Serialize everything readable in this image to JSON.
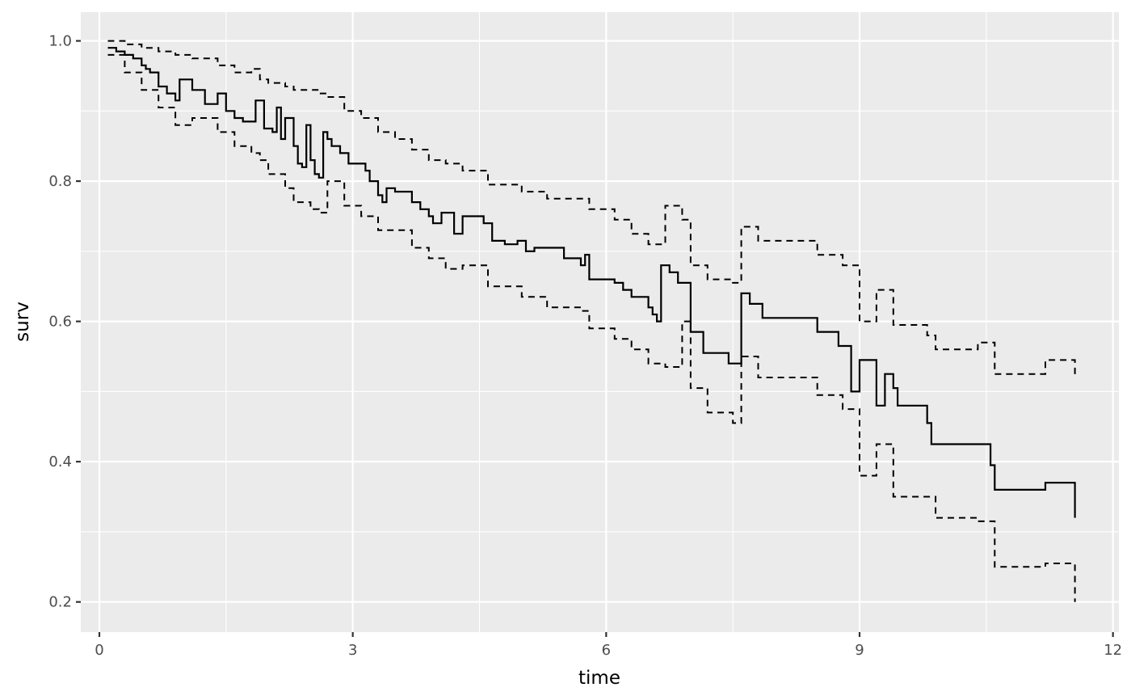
{
  "chart_data": {
    "type": "line",
    "title": "",
    "xlabel": "time",
    "ylabel": "surv",
    "xlim": [
      -0.22,
      12.07
    ],
    "ylim": [
      0.157,
      1.041
    ],
    "x_ticks": [
      0,
      3,
      6,
      9,
      12
    ],
    "x_tick_labels": [
      "0",
      "3",
      "6",
      "9",
      "12"
    ],
    "y_ticks": [
      0.2,
      0.4,
      0.6,
      0.8,
      1.0
    ],
    "y_tick_labels": [
      "0.2",
      "0.4",
      "0.6",
      "0.8",
      "1.0"
    ],
    "grid": true,
    "legend": "none",
    "series": [
      {
        "style": "solid",
        "step": true,
        "x": [
          0.1,
          0.2,
          0.3,
          0.4,
          0.5,
          0.55,
          0.6,
          0.7,
          0.8,
          0.9,
          0.95,
          1.1,
          1.25,
          1.4,
          1.5,
          1.6,
          1.7,
          1.85,
          1.95,
          2.05,
          2.1,
          2.15,
          2.2,
          2.3,
          2.35,
          2.4,
          2.45,
          2.5,
          2.55,
          2.6,
          2.65,
          2.7,
          2.75,
          2.85,
          2.95,
          3.15,
          3.2,
          3.3,
          3.35,
          3.4,
          3.5,
          3.7,
          3.8,
          3.9,
          3.95,
          4.05,
          4.2,
          4.3,
          4.55,
          4.65,
          4.8,
          4.95,
          5.05,
          5.15,
          5.5,
          5.7,
          5.75,
          5.8,
          6.1,
          6.2,
          6.3,
          6.5,
          6.55,
          6.6,
          6.65,
          6.75,
          6.85,
          7.0,
          7.15,
          7.45,
          7.6,
          7.7,
          7.85,
          8.5,
          8.75,
          8.9,
          9.0,
          9.2,
          9.3,
          9.4,
          9.45,
          9.8,
          9.85,
          10.3,
          10.55,
          10.6,
          11.2,
          11.55
        ],
        "y": [
          0.99,
          0.985,
          0.98,
          0.975,
          0.965,
          0.96,
          0.955,
          0.935,
          0.925,
          0.915,
          0.945,
          0.93,
          0.91,
          0.925,
          0.9,
          0.89,
          0.885,
          0.915,
          0.875,
          0.87,
          0.905,
          0.86,
          0.89,
          0.85,
          0.825,
          0.82,
          0.88,
          0.83,
          0.81,
          0.805,
          0.87,
          0.86,
          0.85,
          0.84,
          0.825,
          0.815,
          0.8,
          0.78,
          0.77,
          0.79,
          0.785,
          0.77,
          0.76,
          0.75,
          0.74,
          0.755,
          0.725,
          0.75,
          0.74,
          0.715,
          0.71,
          0.715,
          0.7,
          0.705,
          0.69,
          0.68,
          0.695,
          0.66,
          0.655,
          0.645,
          0.635,
          0.62,
          0.61,
          0.6,
          0.68,
          0.67,
          0.655,
          0.585,
          0.555,
          0.54,
          0.64,
          0.625,
          0.605,
          0.585,
          0.565,
          0.5,
          0.545,
          0.48,
          0.525,
          0.505,
          0.48,
          0.455,
          0.425,
          0.425,
          0.395,
          0.36,
          0.37,
          0.32
        ]
      },
      {
        "style": "dashed",
        "step": true,
        "x": [
          0.1,
          0.3,
          0.5,
          0.7,
          0.9,
          1.1,
          1.4,
          1.6,
          1.8,
          1.9,
          2.0,
          2.2,
          2.3,
          2.5,
          2.6,
          2.7,
          2.9,
          3.1,
          3.3,
          3.5,
          3.7,
          3.9,
          4.1,
          4.3,
          4.6,
          5.0,
          5.3,
          5.7,
          5.8,
          6.1,
          6.3,
          6.5,
          6.7,
          6.9,
          7.0,
          7.2,
          7.5,
          7.6,
          7.8,
          8.5,
          8.8,
          9.0,
          9.2,
          9.4,
          9.8,
          9.9,
          10.4,
          10.6,
          11.2,
          11.55
        ],
        "y": [
          1.0,
          0.995,
          0.99,
          0.985,
          0.98,
          0.975,
          0.965,
          0.955,
          0.96,
          0.945,
          0.94,
          0.935,
          0.93,
          0.93,
          0.925,
          0.92,
          0.9,
          0.89,
          0.87,
          0.86,
          0.845,
          0.83,
          0.825,
          0.815,
          0.795,
          0.785,
          0.775,
          0.775,
          0.76,
          0.745,
          0.725,
          0.71,
          0.765,
          0.745,
          0.68,
          0.66,
          0.655,
          0.735,
          0.715,
          0.695,
          0.68,
          0.6,
          0.645,
          0.595,
          0.58,
          0.56,
          0.57,
          0.525,
          0.545,
          0.52
        ]
      },
      {
        "style": "dashed",
        "step": true,
        "x": [
          0.1,
          0.3,
          0.5,
          0.7,
          0.9,
          1.1,
          1.4,
          1.6,
          1.8,
          1.9,
          2.0,
          2.2,
          2.3,
          2.5,
          2.6,
          2.7,
          2.9,
          3.1,
          3.3,
          3.5,
          3.7,
          3.9,
          4.1,
          4.3,
          4.6,
          5.0,
          5.3,
          5.7,
          5.8,
          6.1,
          6.3,
          6.5,
          6.7,
          6.9,
          7.0,
          7.2,
          7.5,
          7.6,
          7.8,
          8.5,
          8.8,
          9.0,
          9.2,
          9.4,
          9.8,
          9.9,
          10.4,
          10.6,
          11.2,
          11.55
        ],
        "y": [
          0.98,
          0.955,
          0.93,
          0.905,
          0.88,
          0.89,
          0.87,
          0.85,
          0.84,
          0.83,
          0.81,
          0.79,
          0.77,
          0.76,
          0.755,
          0.8,
          0.765,
          0.75,
          0.73,
          0.73,
          0.705,
          0.69,
          0.675,
          0.68,
          0.65,
          0.635,
          0.62,
          0.615,
          0.59,
          0.575,
          0.56,
          0.54,
          0.535,
          0.6,
          0.505,
          0.47,
          0.455,
          0.55,
          0.52,
          0.495,
          0.475,
          0.38,
          0.425,
          0.35,
          0.35,
          0.32,
          0.315,
          0.25,
          0.255,
          0.2
        ]
      }
    ]
  }
}
